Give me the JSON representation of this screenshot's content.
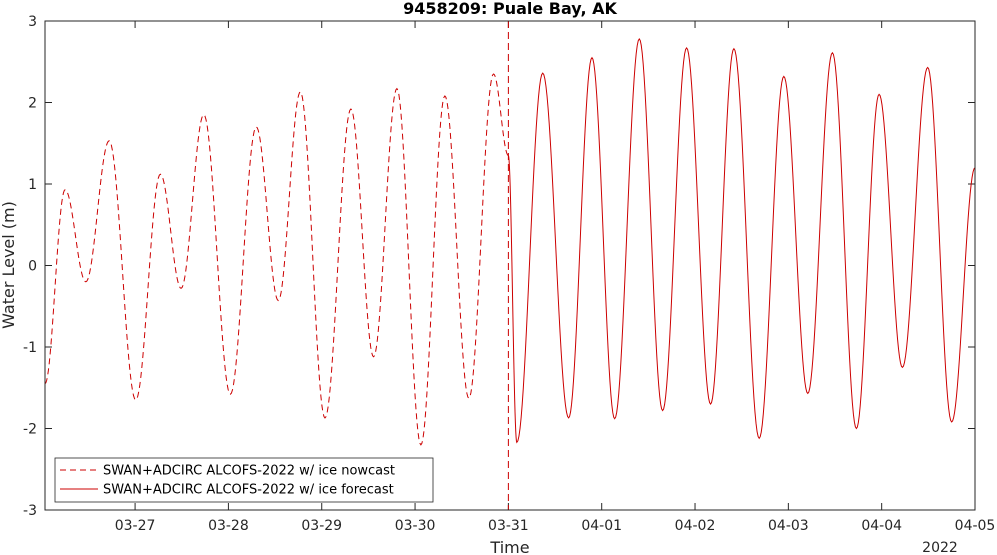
{
  "chart_data": {
    "type": "line",
    "title": "9458209: Puale Bay, AK",
    "xlabel": "Time",
    "ylabel": "Water Level (m)",
    "year_label": "2022",
    "xlim": [
      "2022-03-26 00:50",
      "2022-04-05 00:00"
    ],
    "ylim": [
      -3,
      3
    ],
    "x_ticks": [
      {
        "date": "2022-03-27",
        "label": "03-27"
      },
      {
        "date": "2022-03-28",
        "label": "03-28"
      },
      {
        "date": "2022-03-29",
        "label": "03-29"
      },
      {
        "date": "2022-03-30",
        "label": "03-30"
      },
      {
        "date": "2022-03-31",
        "label": "03-31"
      },
      {
        "date": "2022-04-01",
        "label": "04-01"
      },
      {
        "date": "2022-04-02",
        "label": "04-02"
      },
      {
        "date": "2022-04-03",
        "label": "04-03"
      },
      {
        "date": "2022-04-04",
        "label": "04-04"
      },
      {
        "date": "2022-04-05",
        "label": "04-05"
      }
    ],
    "y_ticks": [
      -3,
      -2,
      -1,
      0,
      1,
      2,
      3
    ],
    "nowcast_end": "2022-03-31 00:00",
    "line_color": "#cc0000",
    "series": [
      {
        "name": "SWAN+ADCIRC ALCOFS-2022 w/ ice nowcast",
        "dash": "dashed",
        "extrema": [
          [
            "2022-03-26 00:50",
            -1.45
          ],
          [
            "2022-03-26 06:00",
            0.93
          ],
          [
            "2022-03-26 11:20",
            -0.2
          ],
          [
            "2022-03-26 17:20",
            1.53
          ],
          [
            "2022-03-27 00:10",
            -1.65
          ],
          [
            "2022-03-27 06:30",
            1.12
          ],
          [
            "2022-03-27 11:50",
            -0.28
          ],
          [
            "2022-03-27 17:40",
            1.85
          ],
          [
            "2022-03-28 00:30",
            -1.58
          ],
          [
            "2022-03-28 07:10",
            1.7
          ],
          [
            "2022-03-28 12:50",
            -0.43
          ],
          [
            "2022-03-28 18:30",
            2.13
          ],
          [
            "2022-03-29 00:50",
            -1.87
          ],
          [
            "2022-03-29 07:30",
            1.92
          ],
          [
            "2022-03-29 13:20",
            -1.12
          ],
          [
            "2022-03-29 19:20",
            2.17
          ],
          [
            "2022-03-30 01:30",
            -2.2
          ],
          [
            "2022-03-30 07:40",
            2.08
          ],
          [
            "2022-03-30 13:50",
            -1.63
          ],
          [
            "2022-03-30 20:10",
            2.35
          ],
          [
            "2022-03-31 00:00",
            1.35
          ]
        ]
      },
      {
        "name": "SWAN+ADCIRC ALCOFS-2022 w/ ice forecast",
        "dash": "solid",
        "extrema": [
          [
            "2022-03-31 00:00",
            1.35
          ],
          [
            "2022-03-31 02:10",
            -2.17
          ],
          [
            "2022-03-31 08:50",
            2.36
          ],
          [
            "2022-03-31 15:30",
            -1.87
          ],
          [
            "2022-03-31 21:30",
            2.55
          ],
          [
            "2022-04-01 03:20",
            -1.88
          ],
          [
            "2022-04-01 09:40",
            2.78
          ],
          [
            "2022-04-01 15:40",
            -1.78
          ],
          [
            "2022-04-01 21:50",
            2.67
          ],
          [
            "2022-04-02 04:00",
            -1.7
          ],
          [
            "2022-04-02 10:00",
            2.66
          ],
          [
            "2022-04-02 16:30",
            -2.12
          ],
          [
            "2022-04-02 22:50",
            2.32
          ],
          [
            "2022-04-03 05:00",
            -1.57
          ],
          [
            "2022-04-03 11:20",
            2.61
          ],
          [
            "2022-04-03 17:30",
            -2.0
          ],
          [
            "2022-04-03 23:20",
            2.1
          ],
          [
            "2022-04-04 05:20",
            -1.25
          ],
          [
            "2022-04-04 11:50",
            2.43
          ],
          [
            "2022-04-04 18:00",
            -1.92
          ],
          [
            "2022-04-05 00:00",
            1.2
          ]
        ]
      }
    ],
    "legend_position": "bottom-left"
  }
}
